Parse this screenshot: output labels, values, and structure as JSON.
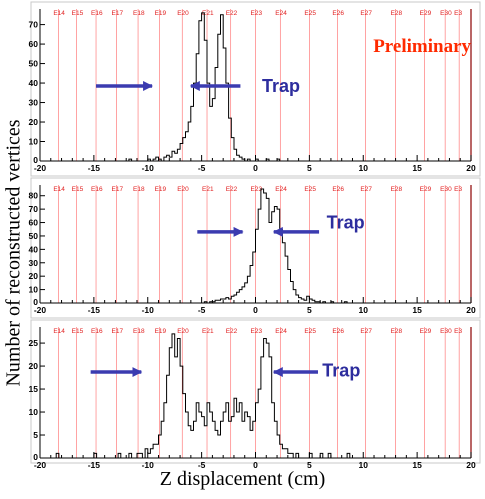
{
  "y_axis_title": "Number of reconstructed vertices",
  "x_axis_title": "Z displacement (cm)",
  "preliminary_label": "Preliminary",
  "colors": {
    "marker_lines": "#ff3333",
    "marker_text": "#e02020",
    "arrow": "#3b3bb0",
    "histogram": "#000000",
    "preliminary": "#ff2a00",
    "end_line": "#8b0000"
  },
  "chart_data": [
    {
      "type": "histogram",
      "xlim": [
        -20,
        20
      ],
      "ylim": [
        0,
        78
      ],
      "x_ticks": [
        "-20",
        "-15",
        "-10",
        "-5",
        "0",
        "5",
        "10",
        "15",
        "20"
      ],
      "y_ticks": [
        "10",
        "20",
        "30",
        "40",
        "50",
        "60",
        "70"
      ],
      "y_tick_values": [
        10,
        20,
        30,
        40,
        50,
        60,
        70
      ],
      "markers": [
        {
          "label": "E14",
          "z": -18.3
        },
        {
          "label": "E15",
          "z": -16.6
        },
        {
          "label": "E16",
          "z": -14.8
        },
        {
          "label": "E17",
          "z": -12.9
        },
        {
          "label": "E18",
          "z": -10.9
        },
        {
          "label": "E19",
          "z": -8.9
        },
        {
          "label": "E20",
          "z": -6.8
        },
        {
          "label": "E21",
          "z": -4.5
        },
        {
          "label": "E22",
          "z": -2.3
        },
        {
          "label": "E23",
          "z": 0.0
        },
        {
          "label": "E24",
          "z": 2.3
        },
        {
          "label": "E25",
          "z": 5.0
        },
        {
          "label": "E26",
          "z": 7.6
        },
        {
          "label": "E27",
          "z": 10.2
        },
        {
          "label": "E28",
          "z": 13.0
        },
        {
          "label": "E29",
          "z": 15.7
        },
        {
          "label": "E30",
          "z": 17.6
        },
        {
          "label": "E3",
          "z": 18.9
        }
      ],
      "trap_label": "Trap",
      "arrows": [
        {
          "from_z": -14.8,
          "to_z": -9.6,
          "y": 38.5
        },
        {
          "from_z": -1.4,
          "to_z": -6.0,
          "y": 38.5
        }
      ],
      "trap_text_anchor": {
        "z": 0.6,
        "y": 38.5
      },
      "show_preliminary": true,
      "bin_start": -12.0,
      "bin_width": 0.25,
      "counts": [
        0,
        1,
        0,
        0,
        0,
        0,
        0,
        0,
        1,
        0,
        1,
        2,
        1,
        0,
        2,
        3,
        2,
        5,
        4,
        6,
        9,
        12,
        15,
        20,
        28,
        40,
        55,
        72,
        76,
        62,
        40,
        28,
        32,
        48,
        65,
        75,
        58,
        40,
        22,
        12,
        6,
        3,
        2,
        1,
        0,
        1,
        0,
        0,
        1,
        0,
        0,
        0,
        1,
        0,
        0,
        0,
        1
      ]
    },
    {
      "type": "histogram",
      "xlim": [
        -20,
        20
      ],
      "ylim": [
        0,
        88
      ],
      "x_ticks": [
        "-20",
        "-15",
        "-10",
        "-5",
        "0",
        "5",
        "10",
        "15",
        "20"
      ],
      "y_ticks": [
        "10",
        "20",
        "30",
        "40",
        "50",
        "60",
        "70",
        "80"
      ],
      "y_tick_values": [
        10,
        20,
        30,
        40,
        50,
        60,
        70,
        80
      ],
      "markers": [
        {
          "label": "E14",
          "z": -18.3
        },
        {
          "label": "E15",
          "z": -16.6
        },
        {
          "label": "E16",
          "z": -14.8
        },
        {
          "label": "E17",
          "z": -12.9
        },
        {
          "label": "E18",
          "z": -10.9
        },
        {
          "label": "E19",
          "z": -8.9
        },
        {
          "label": "E20",
          "z": -6.8
        },
        {
          "label": "E21",
          "z": -4.5
        },
        {
          "label": "E22",
          "z": -2.3
        },
        {
          "label": "E23",
          "z": 0.0
        },
        {
          "label": "E24",
          "z": 2.3
        },
        {
          "label": "E25",
          "z": 5.0
        },
        {
          "label": "E26",
          "z": 7.6
        },
        {
          "label": "E27",
          "z": 10.2
        },
        {
          "label": "E28",
          "z": 13.0
        },
        {
          "label": "E29",
          "z": 15.7
        },
        {
          "label": "E30",
          "z": 17.6
        },
        {
          "label": "E3",
          "z": 18.9
        }
      ],
      "trap_label": "Trap",
      "arrows": [
        {
          "from_z": -5.4,
          "to_z": -1.2,
          "y": 53.0
        },
        {
          "from_z": 5.9,
          "to_z": 1.7,
          "y": 53.0
        }
      ],
      "trap_text_anchor": {
        "z": 6.6,
        "y": 60.0
      },
      "show_preliminary": false,
      "bin_start": -5.0,
      "bin_width": 0.25,
      "counts": [
        0,
        1,
        0,
        1,
        1,
        2,
        2,
        3,
        3,
        4,
        3,
        5,
        6,
        8,
        10,
        12,
        15,
        20,
        28,
        38,
        55,
        70,
        85,
        82,
        78,
        60,
        68,
        72,
        70,
        55,
        45,
        35,
        25,
        16,
        10,
        6,
        4,
        3,
        2,
        5,
        3,
        2,
        1,
        1,
        0,
        1,
        0,
        0,
        1,
        0,
        0,
        0,
        0,
        1
      ]
    },
    {
      "type": "histogram",
      "xlim": [
        -20,
        20
      ],
      "ylim": [
        0,
        28.5
      ],
      "x_ticks": [
        "-20",
        "-15",
        "-10",
        "-5",
        "0",
        "5",
        "10",
        "15",
        "20"
      ],
      "y_ticks": [
        "5",
        "10",
        "15",
        "20",
        "25"
      ],
      "y_tick_values": [
        5,
        10,
        15,
        20,
        25
      ],
      "markers": [
        {
          "label": "E14",
          "z": -18.3
        },
        {
          "label": "E15",
          "z": -16.6
        },
        {
          "label": "E16",
          "z": -14.8
        },
        {
          "label": "E17",
          "z": -12.9
        },
        {
          "label": "E18",
          "z": -10.9
        },
        {
          "label": "E19",
          "z": -8.9
        },
        {
          "label": "E20",
          "z": -6.8
        },
        {
          "label": "E21",
          "z": -4.5
        },
        {
          "label": "E22",
          "z": -2.3
        },
        {
          "label": "E23",
          "z": 0.0
        },
        {
          "label": "E24",
          "z": 2.3
        },
        {
          "label": "E25",
          "z": 5.0
        },
        {
          "label": "E26",
          "z": 7.6
        },
        {
          "label": "E27",
          "z": 10.2
        },
        {
          "label": "E28",
          "z": 13.0
        },
        {
          "label": "E29",
          "z": 15.7
        },
        {
          "label": "E30",
          "z": 17.6
        },
        {
          "label": "E3",
          "z": 18.9
        }
      ],
      "trap_label": "Trap",
      "arrows": [
        {
          "from_z": -15.3,
          "to_z": -10.6,
          "y": 18.7
        },
        {
          "from_z": 5.8,
          "to_z": 1.7,
          "y": 18.7
        }
      ],
      "trap_text_anchor": {
        "z": 6.2,
        "y": 19.0
      },
      "show_preliminary": false,
      "bin_start": -18.5,
      "bin_width": 0.25,
      "counts": [
        1,
        0,
        0,
        0,
        0,
        0,
        0,
        0,
        0,
        0,
        0,
        0,
        0,
        0,
        1,
        0,
        0,
        0,
        0,
        0,
        0,
        0,
        0,
        1,
        0,
        0,
        0,
        1,
        0,
        0,
        1,
        1,
        0,
        2,
        1,
        2,
        3,
        3,
        5,
        8,
        12,
        18,
        24,
        27,
        22,
        26,
        20,
        14,
        10,
        7,
        6,
        8,
        12,
        10,
        9,
        7,
        12,
        10,
        8,
        6,
        5,
        8,
        10,
        12,
        8,
        9,
        13,
        10,
        12,
        8,
        10,
        9,
        6,
        8,
        12,
        15,
        22,
        26,
        25,
        22,
        12,
        8,
        5,
        3,
        2,
        2,
        1,
        1,
        0,
        1,
        0,
        0,
        0,
        0,
        1,
        0,
        0,
        0,
        1,
        0,
        0,
        1,
        0,
        0,
        0,
        0,
        0,
        0,
        1
      ]
    }
  ]
}
